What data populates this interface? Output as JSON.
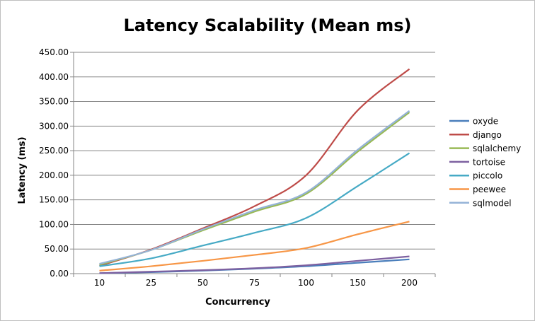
{
  "chart_data": {
    "type": "line",
    "title": "Latency Scalability (Mean ms)",
    "xlabel": "Concurrency",
    "ylabel": "Latency (ms)",
    "categories": [
      "10",
      "25",
      "50",
      "75",
      "100",
      "150",
      "200"
    ],
    "ylim": [
      0,
      450
    ],
    "yticks": [
      "0.00",
      "50.00",
      "100.00",
      "150.00",
      "200.00",
      "250.00",
      "300.00",
      "350.00",
      "400.00",
      "450.00"
    ],
    "grid": true,
    "legend": "right",
    "series": [
      {
        "name": "oxyde",
        "color": "#4a7ebb",
        "values": [
          1,
          3,
          6,
          10,
          15,
          22,
          29
        ]
      },
      {
        "name": "django",
        "color": "#be4b48",
        "values": [
          16,
          49,
          92,
          137,
          200,
          332,
          416
        ]
      },
      {
        "name": "sqlalchemy",
        "color": "#98b954",
        "values": [
          18,
          48,
          88,
          126,
          162,
          248,
          328
        ]
      },
      {
        "name": "tortoise",
        "color": "#7d60a0",
        "values": [
          1,
          4,
          7,
          11,
          17,
          26,
          35
        ]
      },
      {
        "name": "piccolo",
        "color": "#46aac5",
        "values": [
          15,
          31,
          57,
          83,
          113,
          178,
          245
        ]
      },
      {
        "name": "peewee",
        "color": "#f79646",
        "values": [
          6,
          15,
          26,
          38,
          52,
          80,
          106
        ]
      },
      {
        "name": "sqlmodel",
        "color": "#95b3d7",
        "values": [
          20,
          48,
          90,
          129,
          165,
          252,
          331
        ]
      }
    ]
  }
}
